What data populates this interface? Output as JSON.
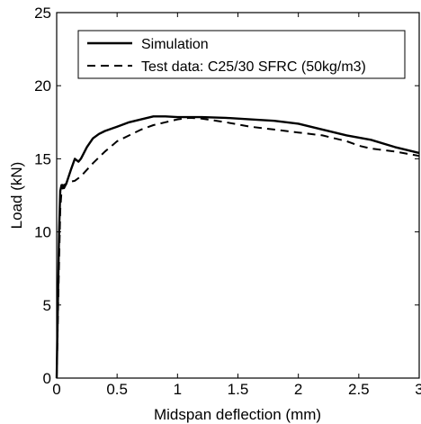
{
  "chart_data": {
    "type": "line",
    "title": "",
    "xlabel": "Midspan deflection (mm)",
    "ylabel": "Load (kN)",
    "xlim": [
      0,
      3
    ],
    "ylim": [
      0,
      25
    ],
    "xticks": [
      0,
      0.5,
      1,
      1.5,
      2,
      2.5,
      3
    ],
    "yticks": [
      0,
      5,
      10,
      15,
      20,
      25
    ],
    "xtick_labels": [
      "0",
      "0.5",
      "1",
      "1.5",
      "2",
      "2.5",
      "3"
    ],
    "ytick_labels": [
      "0",
      "5",
      "10",
      "15",
      "20",
      "25"
    ],
    "grid": false,
    "legend_position": "top-right",
    "series": [
      {
        "name": "Simulation",
        "style": "solid",
        "color": "#000000",
        "x": [
          0,
          0.01,
          0.02,
          0.03,
          0.04,
          0.05,
          0.06,
          0.08,
          0.1,
          0.12,
          0.15,
          0.18,
          0.2,
          0.25,
          0.3,
          0.35,
          0.4,
          0.5,
          0.6,
          0.7,
          0.8,
          0.9,
          1.0,
          1.2,
          1.4,
          1.6,
          1.8,
          2.0,
          2.2,
          2.4,
          2.6,
          2.8,
          3.0
        ],
        "y": [
          0,
          5,
          10,
          12.8,
          13.2,
          13.2,
          13.0,
          13.3,
          13.8,
          14.3,
          15.0,
          14.8,
          15.0,
          15.8,
          16.4,
          16.7,
          16.9,
          17.2,
          17.5,
          17.7,
          17.9,
          17.9,
          17.85,
          17.85,
          17.8,
          17.7,
          17.6,
          17.4,
          17.0,
          16.6,
          16.3,
          15.8,
          15.4
        ]
      },
      {
        "name": "Test data: C25/30 SFRC (50kg/m3)",
        "style": "dashed",
        "color": "#000000",
        "x": [
          0,
          0.01,
          0.02,
          0.03,
          0.04,
          0.06,
          0.08,
          0.1,
          0.15,
          0.2,
          0.3,
          0.4,
          0.5,
          0.6,
          0.7,
          0.8,
          0.9,
          1.0,
          1.1,
          1.2,
          1.4,
          1.6,
          1.8,
          2.0,
          2.2,
          2.3,
          2.4,
          2.5,
          2.6,
          2.8,
          3.0
        ],
        "y": [
          0,
          4,
          8,
          11.5,
          12.8,
          13.2,
          13.3,
          13.4,
          13.5,
          13.8,
          14.7,
          15.5,
          16.2,
          16.6,
          17.0,
          17.3,
          17.5,
          17.7,
          17.8,
          17.75,
          17.5,
          17.2,
          17.0,
          16.8,
          16.6,
          16.4,
          16.2,
          15.9,
          15.7,
          15.5,
          15.2
        ]
      }
    ]
  }
}
